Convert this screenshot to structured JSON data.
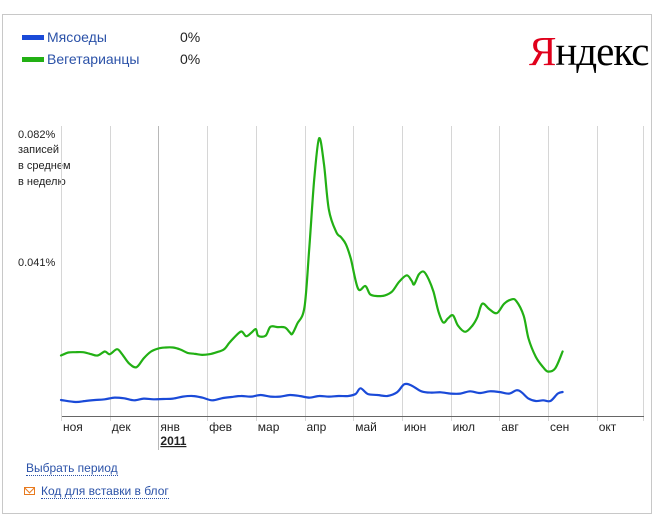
{
  "legend": {
    "items": [
      {
        "name": "Мясоеды",
        "value": "0%",
        "color": "#1a4ad8"
      },
      {
        "name": "Вегетарианцы",
        "value": "0%",
        "color": "#22b014"
      }
    ]
  },
  "logo": {
    "first": "Я",
    "rest": "ндекс"
  },
  "y_axis": {
    "top_value": "0.082%",
    "caption": [
      "записей",
      "в среднем",
      "в неделю"
    ],
    "mid_value": "0.041%"
  },
  "links": {
    "period": "Выбрать период",
    "embed": "Код для вставки в блог"
  },
  "chart_data": {
    "type": "line",
    "y_unit": "% записей в среднем в неделю",
    "ylim": [
      0,
      0.082
    ],
    "months": [
      "ноя",
      "дек",
      "янв",
      "фев",
      "мар",
      "апр",
      "май",
      "июн",
      "июл",
      "авг",
      "сен",
      "окт"
    ],
    "year_label": "2011",
    "year_at_month": "янв",
    "x_range_months": [
      0,
      11.7
    ],
    "grid": "vertical",
    "series": [
      {
        "name": "Вегетарианцы",
        "color": "#22b014",
        "points": [
          [
            0,
            0.0163
          ],
          [
            0.15,
            0.0172
          ],
          [
            0.3,
            0.0173
          ],
          [
            0.45,
            0.0173
          ],
          [
            0.6,
            0.0168
          ],
          [
            0.75,
            0.0163
          ],
          [
            0.9,
            0.0175
          ],
          [
            1.0,
            0.0167
          ],
          [
            1.15,
            0.0182
          ],
          [
            1.25,
            0.0168
          ],
          [
            1.4,
            0.0139
          ],
          [
            1.55,
            0.0128
          ],
          [
            1.7,
            0.0155
          ],
          [
            1.85,
            0.0175
          ],
          [
            2.0,
            0.0184
          ],
          [
            2.15,
            0.0187
          ],
          [
            2.3,
            0.0187
          ],
          [
            2.45,
            0.0181
          ],
          [
            2.6,
            0.0171
          ],
          [
            2.75,
            0.0168
          ],
          [
            2.9,
            0.0165
          ],
          [
            3.05,
            0.0167
          ],
          [
            3.2,
            0.0173
          ],
          [
            3.35,
            0.0182
          ],
          [
            3.45,
            0.02
          ],
          [
            3.55,
            0.0216
          ],
          [
            3.7,
            0.0235
          ],
          [
            3.8,
            0.0221
          ],
          [
            3.9,
            0.023
          ],
          [
            4.0,
            0.0242
          ],
          [
            4.05,
            0.0222
          ],
          [
            4.2,
            0.0222
          ],
          [
            4.3,
            0.0249
          ],
          [
            4.45,
            0.0248
          ],
          [
            4.6,
            0.0247
          ],
          [
            4.7,
            0.0232
          ],
          [
            4.75,
            0.0228
          ],
          [
            4.85,
            0.0258
          ],
          [
            5.0,
            0.0308
          ],
          [
            5.1,
            0.0489
          ],
          [
            5.2,
            0.069
          ],
          [
            5.3,
            0.0813
          ],
          [
            5.4,
            0.0735
          ],
          [
            5.5,
            0.0599
          ],
          [
            5.65,
            0.0533
          ],
          [
            5.75,
            0.0517
          ],
          [
            5.85,
            0.0496
          ],
          [
            5.95,
            0.0453
          ],
          [
            6.1,
            0.0363
          ],
          [
            6.25,
            0.0371
          ],
          [
            6.35,
            0.0346
          ],
          [
            6.5,
            0.0341
          ],
          [
            6.65,
            0.0343
          ],
          [
            6.8,
            0.0355
          ],
          [
            6.95,
            0.0385
          ],
          [
            7.1,
            0.0403
          ],
          [
            7.2,
            0.0387
          ],
          [
            7.25,
            0.0376
          ],
          [
            7.35,
            0.0406
          ],
          [
            7.45,
            0.0414
          ],
          [
            7.55,
            0.0391
          ],
          [
            7.65,
            0.0353
          ],
          [
            7.75,
            0.0295
          ],
          [
            7.85,
            0.0262
          ],
          [
            7.95,
            0.0275
          ],
          [
            8.05,
            0.0283
          ],
          [
            8.15,
            0.0253
          ],
          [
            8.3,
            0.0234
          ],
          [
            8.45,
            0.0253
          ],
          [
            8.55,
            0.0278
          ],
          [
            8.65,
            0.0318
          ],
          [
            8.8,
            0.0301
          ],
          [
            8.95,
            0.029
          ],
          [
            9.1,
            0.0318
          ],
          [
            9.25,
            0.0331
          ],
          [
            9.35,
            0.0326
          ],
          [
            9.5,
            0.0282
          ],
          [
            9.6,
            0.0214
          ],
          [
            9.75,
            0.0159
          ],
          [
            9.9,
            0.0128
          ],
          [
            10.0,
            0.0115
          ],
          [
            10.15,
            0.0125
          ],
          [
            10.3,
            0.0175
          ]
        ]
      },
      {
        "name": "Мясоеды",
        "color": "#1a4ad8",
        "points": [
          [
            0,
            0.003
          ],
          [
            0.3,
            0.0024
          ],
          [
            0.5,
            0.0027
          ],
          [
            0.7,
            0.003
          ],
          [
            0.9,
            0.0032
          ],
          [
            1.1,
            0.0037
          ],
          [
            1.3,
            0.0035
          ],
          [
            1.5,
            0.0029
          ],
          [
            1.7,
            0.0034
          ],
          [
            1.9,
            0.0032
          ],
          [
            2.1,
            0.0033
          ],
          [
            2.3,
            0.0034
          ],
          [
            2.5,
            0.004
          ],
          [
            2.7,
            0.0042
          ],
          [
            2.9,
            0.0037
          ],
          [
            3.1,
            0.0029
          ],
          [
            3.3,
            0.0035
          ],
          [
            3.5,
            0.0039
          ],
          [
            3.7,
            0.0042
          ],
          [
            3.9,
            0.004
          ],
          [
            4.1,
            0.0045
          ],
          [
            4.3,
            0.004
          ],
          [
            4.5,
            0.004
          ],
          [
            4.7,
            0.0045
          ],
          [
            4.9,
            0.0042
          ],
          [
            5.1,
            0.0037
          ],
          [
            5.3,
            0.0042
          ],
          [
            5.5,
            0.004
          ],
          [
            5.7,
            0.0042
          ],
          [
            5.9,
            0.0042
          ],
          [
            6.05,
            0.0048
          ],
          [
            6.15,
            0.0065
          ],
          [
            6.3,
            0.0048
          ],
          [
            6.5,
            0.0045
          ],
          [
            6.7,
            0.0042
          ],
          [
            6.9,
            0.0053
          ],
          [
            7.05,
            0.0077
          ],
          [
            7.2,
            0.0073
          ],
          [
            7.4,
            0.0056
          ],
          [
            7.6,
            0.0052
          ],
          [
            7.8,
            0.0053
          ],
          [
            8.0,
            0.0049
          ],
          [
            8.2,
            0.0049
          ],
          [
            8.4,
            0.0056
          ],
          [
            8.6,
            0.0051
          ],
          [
            8.8,
            0.0056
          ],
          [
            9.0,
            0.0054
          ],
          [
            9.2,
            0.0049
          ],
          [
            9.35,
            0.0059
          ],
          [
            9.45,
            0.0054
          ],
          [
            9.6,
            0.0034
          ],
          [
            9.75,
            0.0027
          ],
          [
            9.9,
            0.0029
          ],
          [
            10.05,
            0.0027
          ],
          [
            10.2,
            0.0049
          ],
          [
            10.3,
            0.0054
          ]
        ]
      }
    ]
  }
}
